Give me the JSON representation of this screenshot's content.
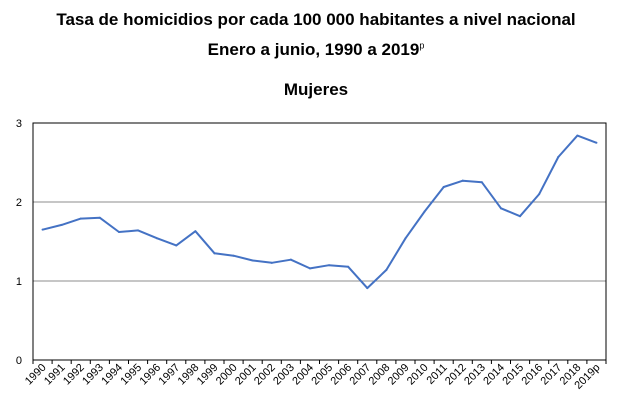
{
  "titles": {
    "line1": "Tasa de homicidios por cada 100 000 habitantes a nivel nacional",
    "line2_main": "Enero a junio, 1990 a 2019",
    "line2_sup": "p",
    "subtitle": "Mujeres"
  },
  "colors": {
    "line": "#4472C4",
    "grid": "#8c8c8c",
    "axis": "#000000"
  },
  "chart_data": {
    "type": "line",
    "title": "Tasa de homicidios por cada 100 000 habitantes a nivel nacional",
    "subtitle": "Mujeres",
    "xlabel": "",
    "ylabel": "",
    "ylim": [
      0,
      3
    ],
    "yticks": [
      "0",
      "1",
      "2",
      "3"
    ],
    "grid": true,
    "categories": [
      "1990",
      "1991",
      "1992",
      "1993",
      "1994",
      "1995",
      "1996",
      "1997",
      "1998",
      "1999",
      "2000",
      "2001",
      "2002",
      "2003",
      "2004",
      "2005",
      "2006",
      "2007",
      "2008",
      "2009",
      "2010",
      "2011",
      "2012",
      "2013",
      "2014",
      "2015",
      "2016",
      "2017",
      "2018",
      "2019p"
    ],
    "series": [
      {
        "values": [
          1.65,
          1.71,
          1.79,
          1.8,
          1.62,
          1.64,
          1.54,
          1.45,
          1.63,
          1.35,
          1.32,
          1.26,
          1.23,
          1.27,
          1.16,
          1.2,
          1.18,
          0.91,
          1.14,
          1.54,
          1.88,
          2.19,
          2.27,
          2.25,
          1.92,
          1.82,
          2.1,
          2.57,
          2.84,
          2.75
        ]
      }
    ]
  }
}
